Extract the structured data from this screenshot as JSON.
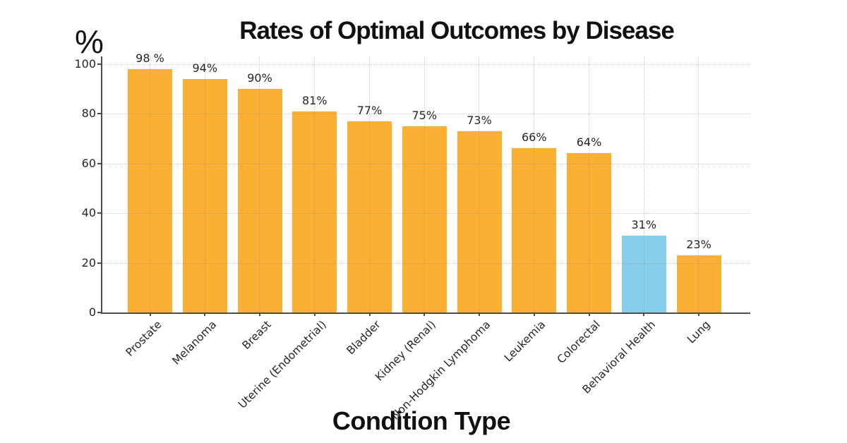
{
  "chart_data": {
    "type": "bar",
    "title": "Rates of Optimal Outcomes by Disease",
    "xlabel": "Condition Type",
    "ylabel": "%",
    "categories": [
      "Prostate",
      "Melanoma",
      "Breast",
      "Uterine (Endometrial)",
      "Bladder",
      "Kidney (Renal)",
      "Non-Hodgkin Lymphoma",
      "Leukemia",
      "Colorectal",
      "Behavioral Health",
      "Lung"
    ],
    "values": [
      98,
      94,
      90,
      81,
      77,
      75,
      73,
      66,
      64,
      31,
      23
    ],
    "value_labels": [
      "98 %",
      "94%",
      "90%",
      "81%",
      "77%",
      "75%",
      "73%",
      "66%",
      "64%",
      "31%",
      "23%"
    ],
    "highlight_index": 9,
    "yticks": [
      0,
      20,
      40,
      60,
      80,
      100
    ],
    "ylim": [
      0,
      103
    ],
    "grid": {
      "horizontal": true,
      "vertical": true,
      "style": "dotted"
    },
    "legend": null,
    "colors": {
      "default_bar": "#FBB034",
      "highlight_bar": "#87CEEB",
      "axis": "#4D4D4D",
      "grid": "#8A8A8A",
      "text": "#262626",
      "title_text": "#111111",
      "background": "#FFFFFF"
    }
  }
}
